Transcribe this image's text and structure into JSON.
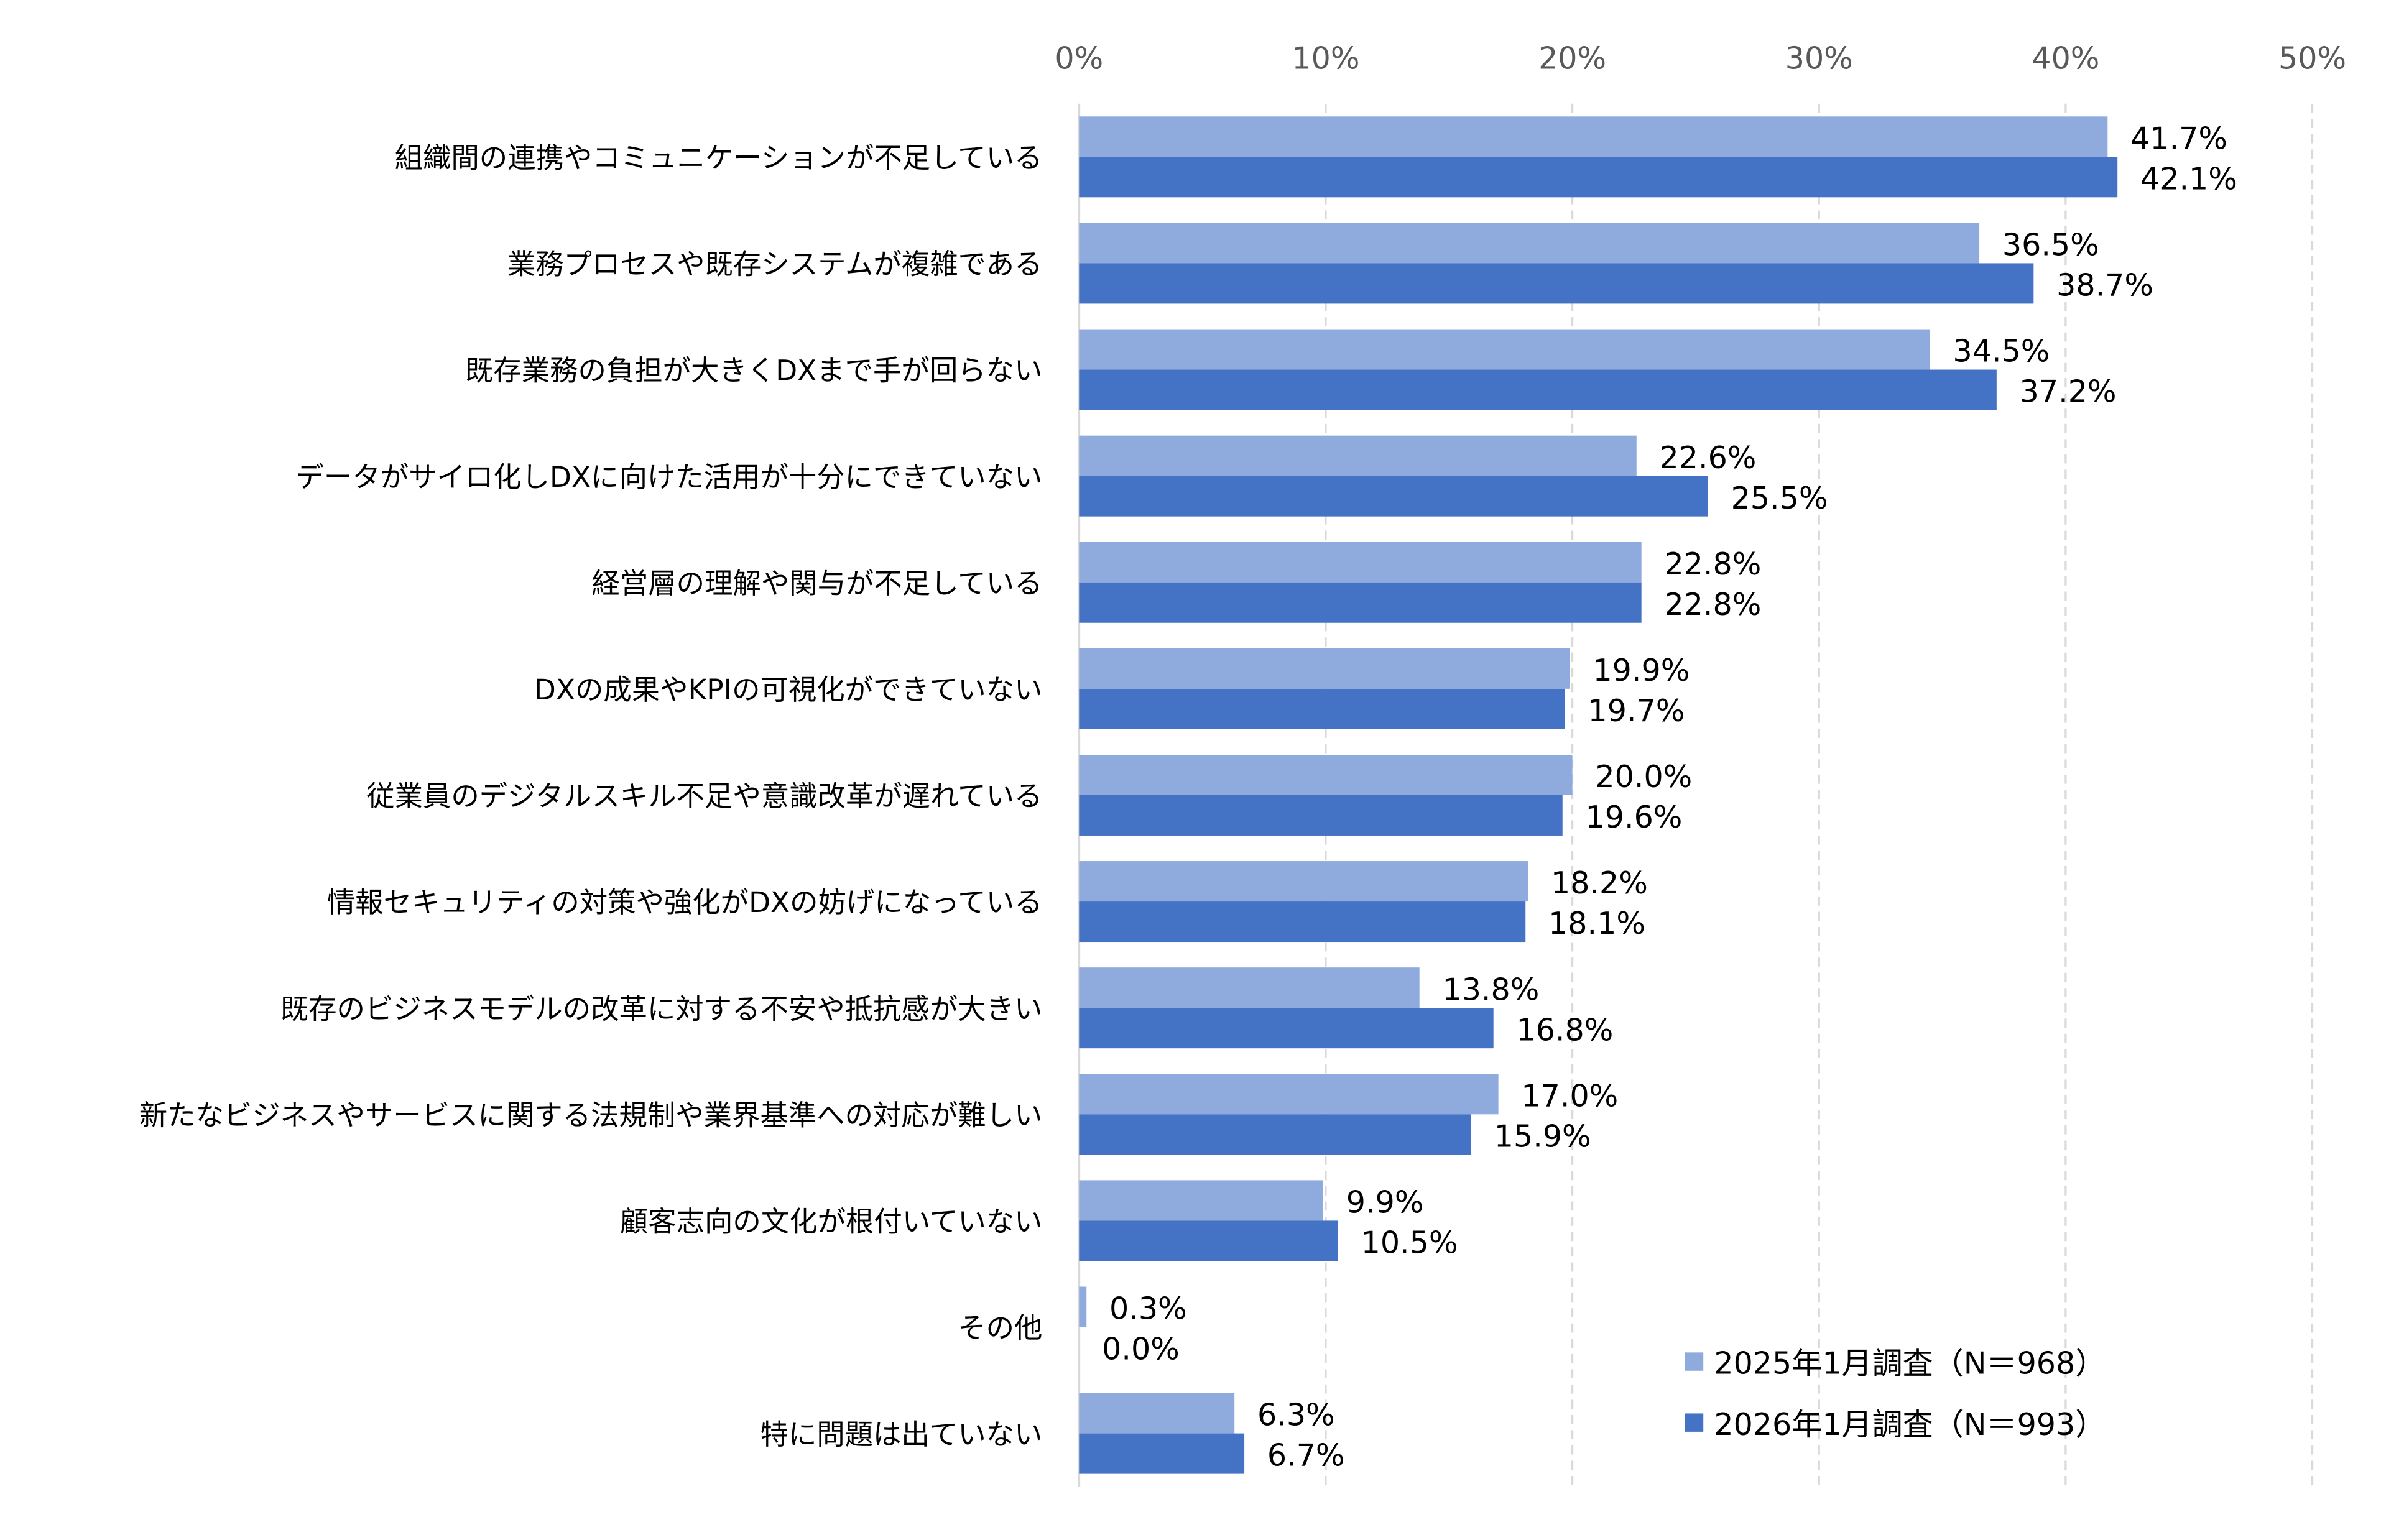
{
  "chart_data": {
    "type": "bar",
    "orientation": "horizontal",
    "title": "",
    "xlabel": "",
    "ylabel": "",
    "xlim": [
      0,
      50
    ],
    "x_ticks": [
      "0%",
      "10%",
      "20%",
      "30%",
      "40%",
      "50%"
    ],
    "x_axis_position": "top",
    "grid": "vertical dashed",
    "legend_position": "bottom-right",
    "categories": [
      "組織間の連携やコミュニケーションが不足している",
      "業務プロセスや既存システムが複雑である",
      "既存業務の負担が大きくDXまで手が回らない",
      "データがサイロ化しDXに向けた活用が十分にできていない",
      "経営層の理解や関与が不足している",
      "DXの成果やKPIの可視化ができていない",
      "従業員のデジタルスキル不足や意識改革が遅れている",
      "情報セキュリティの対策や強化がDXの妨げになっている",
      "既存のビジネスモデルの改革に対する不安や抵抗感が大きい",
      "新たなビジネスやサービスに関する法規制や業界基準への対応が難しい",
      "顧客志向の文化が根付いていない",
      "その他",
      "特に問題は出ていない"
    ],
    "series": [
      {
        "name": "2025年1月調査（N＝968）",
        "color": "#8FAADC",
        "values": [
          41.7,
          36.5,
          34.5,
          22.6,
          22.8,
          19.9,
          20.0,
          18.2,
          13.8,
          17.0,
          9.9,
          0.3,
          6.3
        ],
        "labels": [
          "41.7%",
          "36.5%",
          "34.5%",
          "22.6%",
          "22.8%",
          "19.9%",
          "20.0%",
          "18.2%",
          "13.8%",
          "17.0%",
          "9.9%",
          "0.3%",
          "6.3%"
        ]
      },
      {
        "name": "2026年1月調査（N＝993）",
        "color": "#4472C4",
        "values": [
          42.1,
          38.7,
          37.2,
          25.5,
          22.8,
          19.7,
          19.6,
          18.1,
          16.8,
          15.9,
          10.5,
          0.0,
          6.7
        ],
        "labels": [
          "42.1%",
          "38.7%",
          "37.2%",
          "25.5%",
          "22.8%",
          "19.7%",
          "19.6%",
          "18.1%",
          "16.8%",
          "15.9%",
          "10.5%",
          "0.0%",
          "6.7%"
        ]
      }
    ]
  }
}
